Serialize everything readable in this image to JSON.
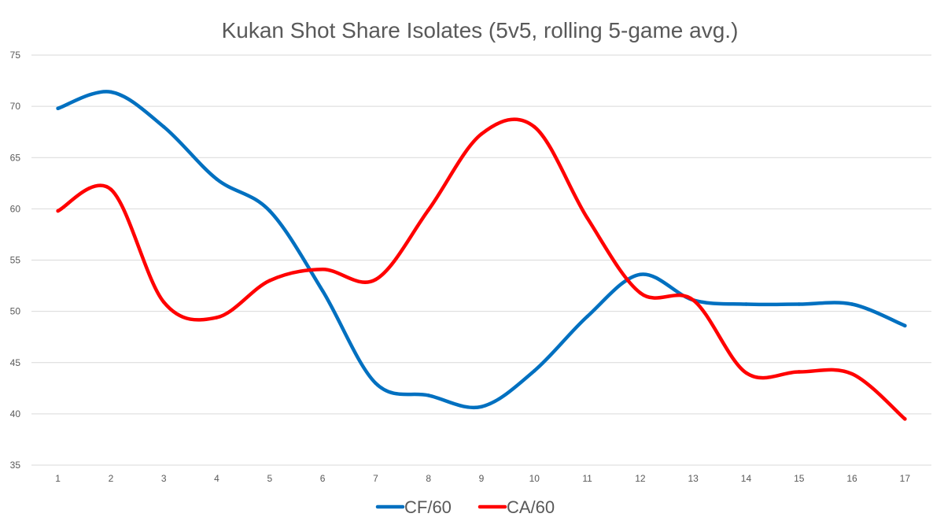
{
  "chart_data": {
    "type": "line",
    "title": "Kukan Shot Share Isolates (5v5, rolling 5-game avg.)",
    "xlabel": "",
    "ylabel": "",
    "categories": [
      "1",
      "2",
      "3",
      "4",
      "5",
      "6",
      "7",
      "8",
      "9",
      "10",
      "11",
      "12",
      "13",
      "14",
      "15",
      "16",
      "17"
    ],
    "ylim": [
      35,
      75
    ],
    "yticks": [
      35,
      40,
      45,
      50,
      55,
      60,
      65,
      70,
      75
    ],
    "grid": true,
    "legend_position": "bottom",
    "series": [
      {
        "name": "CF/60",
        "color": "#0070C0",
        "values": [
          69.8,
          71.4,
          68.0,
          62.9,
          59.8,
          52.0,
          43.0,
          41.8,
          40.7,
          44.2,
          49.5,
          53.6,
          51.1,
          50.7,
          50.7,
          50.7,
          48.6
        ]
      },
      {
        "name": "CA/60",
        "color": "#FF0000",
        "values": [
          59.8,
          61.9,
          50.9,
          49.4,
          53.0,
          54.1,
          53.1,
          59.9,
          67.3,
          68.0,
          59.1,
          51.8,
          51.1,
          44.0,
          44.1,
          43.9,
          39.5
        ]
      }
    ]
  }
}
